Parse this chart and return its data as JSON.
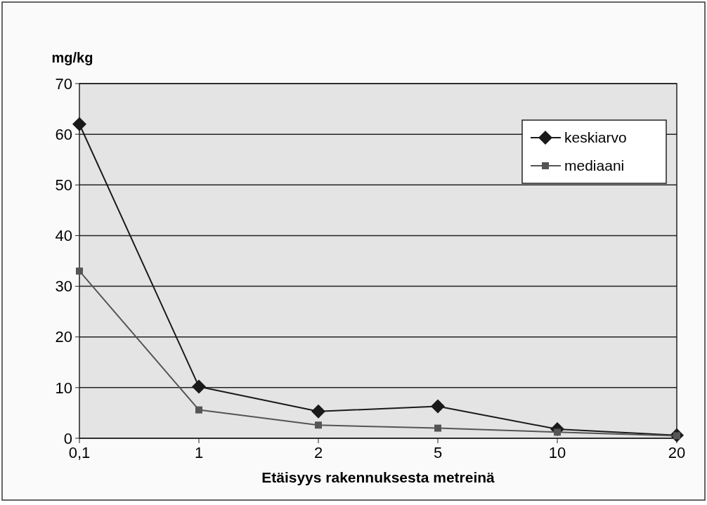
{
  "chart_data": {
    "type": "line",
    "xlabel": "Etäisyys rakennuksesta metreinä",
    "ylabel": "mg/kg",
    "categories": [
      "0,1",
      "1",
      "2",
      "5",
      "10",
      "20"
    ],
    "series": [
      {
        "name": "keskiarvo",
        "color": "#1a1a1a",
        "marker": "diamond",
        "values": [
          62,
          10.2,
          5.3,
          6.3,
          1.8,
          0.6
        ]
      },
      {
        "name": "mediaani",
        "color": "#555555",
        "marker": "square",
        "values": [
          33,
          5.6,
          2.6,
          2.0,
          1.2,
          0.5
        ]
      }
    ],
    "ylim": [
      0,
      70
    ],
    "yticks": [
      0,
      10,
      20,
      30,
      40,
      50,
      60,
      70
    ],
    "grid": "y",
    "legend": "top right"
  }
}
